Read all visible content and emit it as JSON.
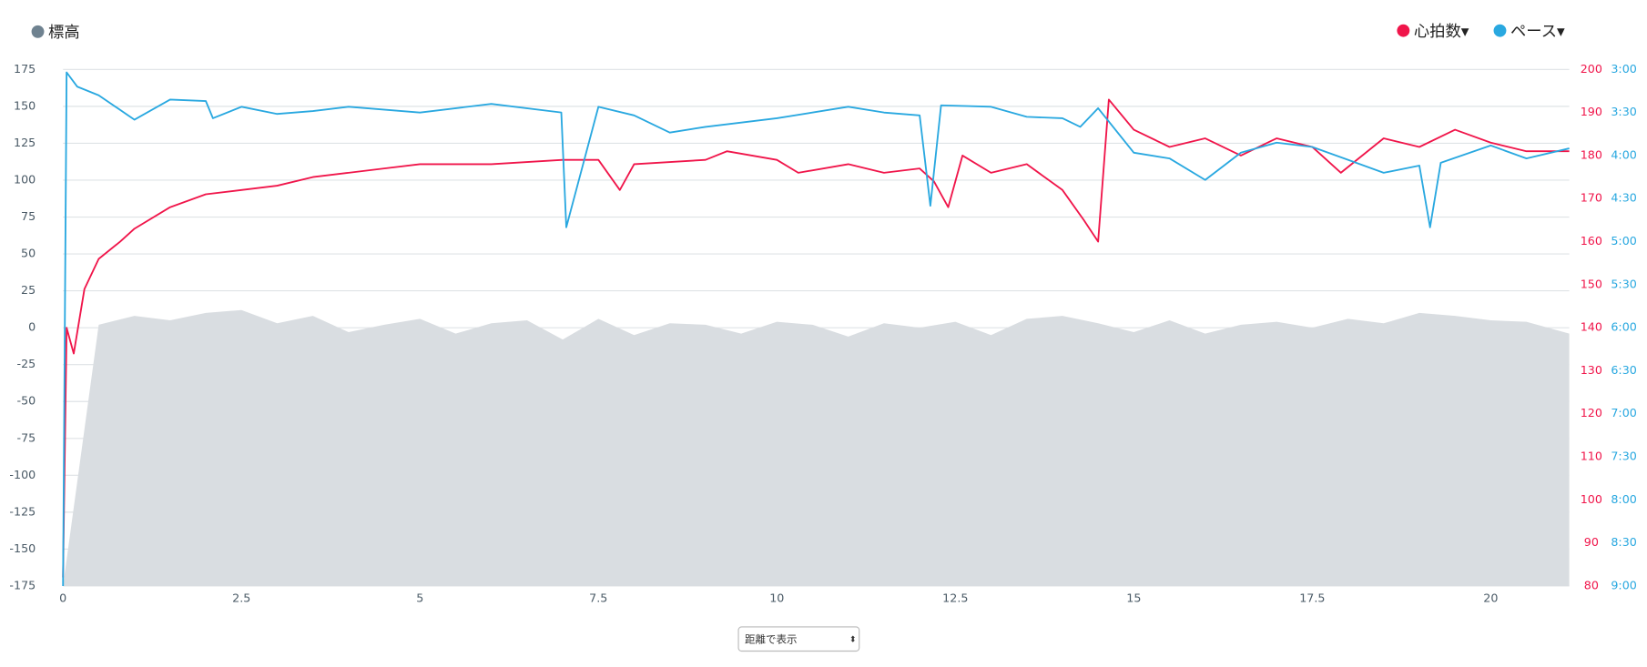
{
  "chart_data": {
    "type": "line",
    "legend": [
      "標高",
      "心拍数▾",
      "ペース▾"
    ],
    "control": "距離で表示",
    "xlim": [
      0,
      21.1
    ],
    "xticks": [
      0,
      2.5,
      5,
      7.5,
      10,
      12.5,
      15,
      17.5,
      20
    ],
    "ylim": [
      -175,
      175
    ],
    "yticks": [
      -175,
      -150,
      -125,
      -100,
      -75,
      -50,
      -25,
      0,
      25,
      50,
      75,
      100,
      125,
      150,
      175
    ],
    "y2lim": [
      80,
      200
    ],
    "y2ticks": [
      80,
      90,
      100,
      110,
      120,
      130,
      140,
      150,
      160,
      170,
      180,
      190,
      200
    ],
    "y3lim": [
      540,
      180
    ],
    "y3ticks": [
      {
        "value": 540,
        "label": "9:00"
      },
      {
        "value": 510,
        "label": "8:30"
      },
      {
        "value": 480,
        "label": "8:00"
      },
      {
        "value": 450,
        "label": "7:30"
      },
      {
        "value": 420,
        "label": "7:00"
      },
      {
        "value": 390,
        "label": "6:30"
      },
      {
        "value": 360,
        "label": "6:00"
      },
      {
        "value": 330,
        "label": "5:30"
      },
      {
        "value": 300,
        "label": "5:00"
      },
      {
        "value": 270,
        "label": "4:30"
      },
      {
        "value": 240,
        "label": "4:00"
      },
      {
        "value": 210,
        "label": "3:30"
      },
      {
        "value": 180,
        "label": "3:00"
      }
    ],
    "grid": true,
    "series": [
      {
        "name": "標高",
        "type": "area",
        "axis": "y",
        "color": "#d9dde1",
        "marker_color": "#6f8290",
        "x": [
          0,
          0.5,
          1,
          1.5,
          2,
          2.5,
          3,
          3.5,
          4,
          4.5,
          5,
          5.5,
          6,
          6.5,
          7,
          7.5,
          8,
          8.5,
          9,
          9.5,
          10,
          10.5,
          11,
          11.5,
          12,
          12.5,
          13,
          13.5,
          14,
          14.5,
          15,
          15.5,
          16,
          16.5,
          17,
          17.5,
          18,
          18.5,
          19,
          19.5,
          20,
          20.5,
          21.1
        ],
        "values": [
          -175,
          2,
          8,
          5,
          10,
          12,
          3,
          8,
          -3,
          2,
          6,
          -4,
          3,
          5,
          -8,
          6,
          -5,
          3,
          2,
          -4,
          4,
          2,
          -6,
          3,
          0,
          4,
          -5,
          6,
          8,
          3,
          -3,
          5,
          -4,
          2,
          4,
          0,
          6,
          3,
          10,
          8,
          5,
          4,
          -4
        ]
      },
      {
        "name": "心拍数▾",
        "axis": "y2",
        "color": "#f0154a",
        "x": [
          0,
          0.05,
          0.1,
          0.15,
          0.3,
          0.5,
          0.8,
          1,
          1.5,
          2,
          2.5,
          3,
          3.5,
          4,
          4.5,
          5,
          6,
          7,
          7.5,
          7.8,
          8,
          9,
          9.3,
          10,
          10.3,
          11,
          11.5,
          12,
          12.2,
          12.4,
          12.6,
          13,
          13.5,
          14,
          14.3,
          14.5,
          14.65,
          15,
          15.5,
          16,
          16.5,
          17,
          17.5,
          17.9,
          18.5,
          19,
          19.5,
          20,
          20.5,
          21.1
        ],
        "values": [
          82,
          140,
          137,
          134,
          149,
          156,
          160,
          163,
          168,
          171,
          172,
          173,
          175,
          176,
          177,
          178,
          178,
          179,
          179,
          172,
          178,
          179,
          181,
          179,
          176,
          178,
          176,
          177,
          174,
          168,
          180,
          176,
          178,
          172,
          165,
          160,
          193,
          186,
          182,
          184,
          180,
          184,
          182,
          176,
          184,
          182,
          186,
          183,
          181,
          181
        ]
      },
      {
        "name": "ペース▾",
        "axis": "y3",
        "color": "#29a8e0",
        "x": [
          0,
          0.05,
          0.2,
          0.5,
          1,
          1.5,
          2,
          2.1,
          2.5,
          3,
          3.5,
          4,
          5,
          6,
          6.98,
          7.05,
          7.5,
          8,
          8.5,
          9,
          10,
          11,
          11.5,
          12,
          12.15,
          12.3,
          13,
          13.5,
          14,
          14.25,
          14.5,
          15,
          15.5,
          16,
          16.5,
          17,
          17.5,
          18,
          18.5,
          19,
          19.15,
          19.3,
          20,
          20.5,
          21.1
        ],
        "values": [
          540,
          182,
          192,
          198,
          215,
          201,
          202,
          214,
          206,
          211,
          209,
          206,
          210,
          204,
          210,
          290,
          206,
          212,
          224,
          220,
          214,
          206,
          210,
          212,
          275,
          205,
          206,
          213,
          214,
          220,
          207,
          238,
          242,
          257,
          238,
          231,
          234,
          243,
          252,
          247,
          290,
          245,
          233,
          242,
          235
        ]
      }
    ]
  }
}
